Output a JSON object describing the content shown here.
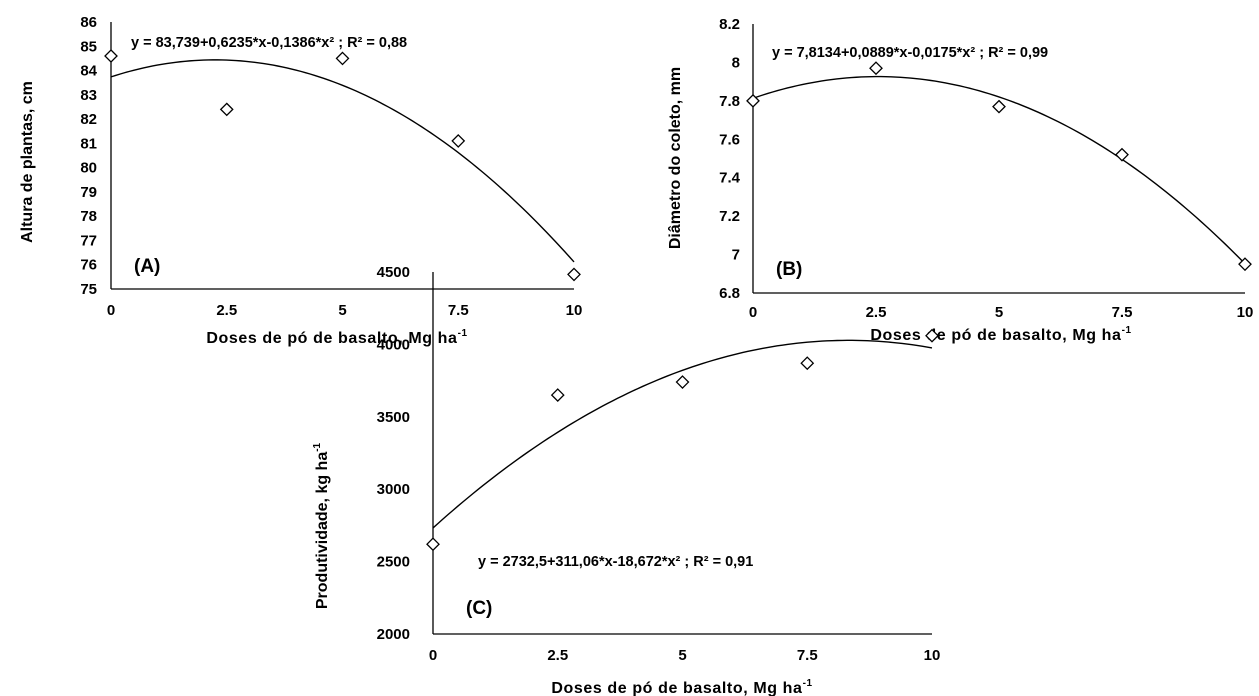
{
  "chart_data": [
    {
      "type": "scatter",
      "panel_label": "(A)",
      "xlabel": "Doses de pó de basalto, Mg ha",
      "xlabel_sup": "-1",
      "ylabel": "Altura de plantas, cm",
      "equation": "y = 83,739+0,6235*x-0,1386*x² ; R² = 0,88",
      "xlim": [
        0,
        10
      ],
      "ylim": [
        75,
        86
      ],
      "x_ticks": [
        "0",
        "2.5",
        "5",
        "7.5",
        "10"
      ],
      "y_ticks": [
        "75",
        "76",
        "77",
        "78",
        "79",
        "80",
        "81",
        "82",
        "83",
        "84",
        "85",
        "86"
      ],
      "points": [
        {
          "x": 0,
          "y": 84.6
        },
        {
          "x": 2.5,
          "y": 82.4
        },
        {
          "x": 5,
          "y": 84.5
        },
        {
          "x": 7.5,
          "y": 81.1
        },
        {
          "x": 10,
          "y": 75.6
        }
      ],
      "fit": {
        "a": 83.739,
        "b": 0.6235,
        "c": -0.1386
      },
      "grid": false
    },
    {
      "type": "scatter",
      "panel_label": "(B)",
      "xlabel": "Doses de pó de basalto, Mg ha",
      "xlabel_sup": "-1",
      "ylabel": "Diâmetro do coleto, mm",
      "equation": "y = 7,8134+0,0889*x-0,0175*x² ; R² = 0,99",
      "xlim": [
        0,
        10
      ],
      "ylim": [
        6.8,
        8.2
      ],
      "x_ticks": [
        "0",
        "2.5",
        "5",
        "7.5",
        "10"
      ],
      "y_ticks": [
        "6.8",
        "7",
        "7.2",
        "7.4",
        "7.6",
        "7.8",
        "8",
        "8.2"
      ],
      "points": [
        {
          "x": 0,
          "y": 7.8
        },
        {
          "x": 2.5,
          "y": 7.97
        },
        {
          "x": 5,
          "y": 7.77
        },
        {
          "x": 7.5,
          "y": 7.52
        },
        {
          "x": 10,
          "y": 6.95
        }
      ],
      "fit": {
        "a": 7.8134,
        "b": 0.0889,
        "c": -0.0175
      },
      "grid": false
    },
    {
      "type": "scatter",
      "panel_label": "(C)",
      "xlabel": "Doses de pó de basalto, Mg ha",
      "xlabel_sup": "-1",
      "ylabel": "Produtividade, kg ha",
      "ylabel_sup": "-1",
      "equation": "y = 2732,5+311,06*x-18,672*x² ; R² = 0,91",
      "xlim": [
        0,
        10
      ],
      "ylim": [
        2000,
        4500
      ],
      "x_ticks": [
        "0",
        "2.5",
        "5",
        "7.5",
        "10"
      ],
      "y_ticks": [
        "2000",
        "2500",
        "3000",
        "3500",
        "4000",
        "4500"
      ],
      "points": [
        {
          "x": 0,
          "y": 2620
        },
        {
          "x": 2.5,
          "y": 3650
        },
        {
          "x": 5,
          "y": 3740
        },
        {
          "x": 7.5,
          "y": 3870
        },
        {
          "x": 10,
          "y": 4060
        }
      ],
      "fit": {
        "a": 2732.5,
        "b": 311.06,
        "c": -18.672
      },
      "grid": false
    }
  ]
}
